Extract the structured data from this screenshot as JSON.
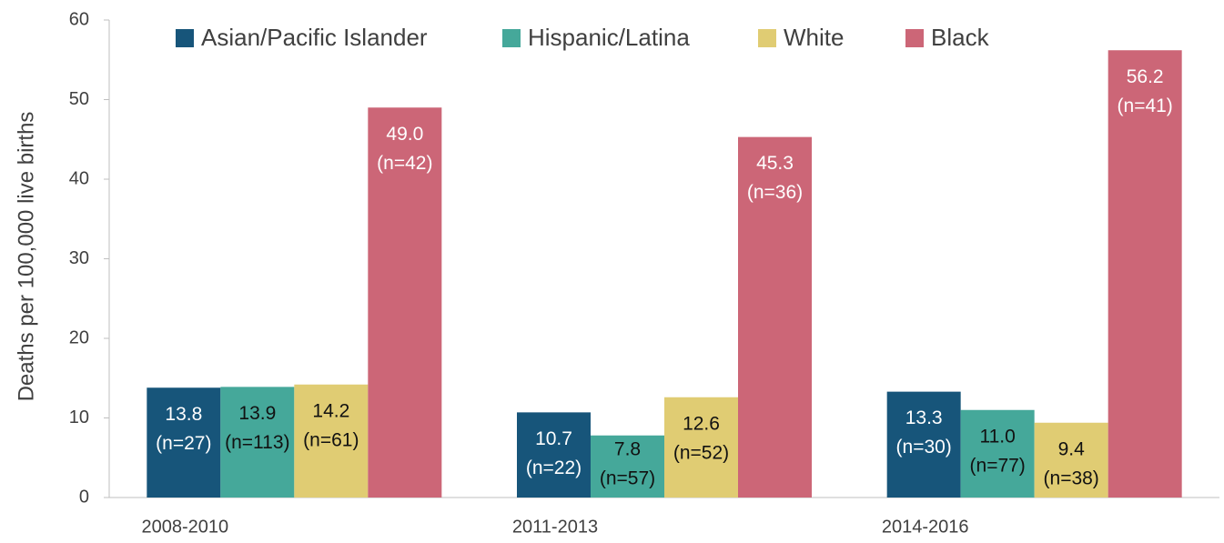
{
  "chart_data": {
    "type": "bar",
    "y_axis_label": "Deaths per 100,000  live births",
    "categories": [
      "2008-2010",
      "2011-2013",
      "2014-2016"
    ],
    "ylim": [
      0,
      60
    ],
    "yticks": [
      0,
      10,
      20,
      30,
      40,
      50,
      60
    ],
    "legend": "top",
    "series": [
      {
        "name": "Asian/Pacific Islander",
        "color": "#17557a",
        "label_color": "#ffffff",
        "values": [
          13.8,
          10.7,
          13.3
        ],
        "value_labels": [
          "13.8",
          "10.7",
          "13.3"
        ],
        "n_labels": [
          "(n=27)",
          "(n=22)",
          "(n=30)"
        ]
      },
      {
        "name": "Hispanic/Latina",
        "color": "#45a89a",
        "label_color": "#111111",
        "values": [
          13.9,
          7.8,
          11.0
        ],
        "value_labels": [
          "13.9",
          "7.8",
          "11.0"
        ],
        "n_labels": [
          "(n=113)",
          "(n=57)",
          "(n=77)"
        ]
      },
      {
        "name": "White",
        "color": "#e0cc73",
        "label_color": "#111111",
        "values": [
          14.2,
          12.6,
          9.4
        ],
        "value_labels": [
          "14.2",
          "12.6",
          "9.4"
        ],
        "n_labels": [
          "(n=61)",
          "(n=52)",
          "(n=38)"
        ]
      },
      {
        "name": "Black",
        "color": "#cc6677",
        "label_color": "#ffffff",
        "values": [
          49.0,
          45.3,
          56.2
        ],
        "value_labels": [
          "49.0",
          "45.3",
          "56.2"
        ],
        "n_labels": [
          "(n=42)",
          "(n=36)",
          "(n=41)"
        ]
      }
    ]
  }
}
